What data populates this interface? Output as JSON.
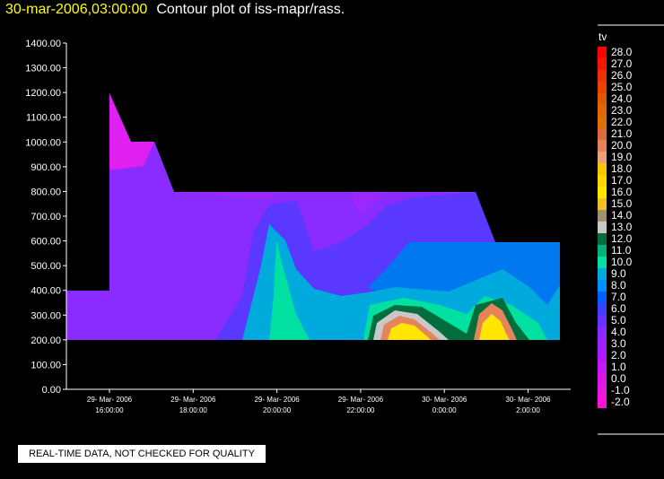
{
  "header": {
    "timestamp": "30-mar-2006,03:00:00",
    "title": "Contour plot of iss-mapr/rass."
  },
  "notice": "REAL-TIME DATA, NOT CHECKED FOR QUALITY",
  "colors": {
    "background": "#000000",
    "timestamp_text": "#ffff00",
    "axis": "#ffffff"
  },
  "chart_data": {
    "type": "heatmap",
    "title": "Contour plot of iss-mapr/rass.",
    "xlabel": "",
    "ylabel": "",
    "ylim": [
      0,
      1400
    ],
    "yticks": [
      "1400.00",
      "1300.00",
      "1200.00",
      "1100.00",
      "1000.00",
      "900.00",
      "800.00",
      "700.00",
      "600.00",
      "500.00",
      "400.00",
      "300.00",
      "200.00",
      "100.00",
      "0.00"
    ],
    "xticks": [
      {
        "date": "29- Mar- 2006",
        "time": "16:00:00"
      },
      {
        "date": "29- Mar- 2006",
        "time": "18:00:00"
      },
      {
        "date": "29- Mar- 2006",
        "time": "20:00:00"
      },
      {
        "date": "29- Mar- 2006",
        "time": "22:00:00"
      },
      {
        "date": "30- Mar- 2006",
        "time": "0:00:00"
      },
      {
        "date": "30- Mar- 2006",
        "time": "2:00:00"
      }
    ],
    "colorbar": {
      "label": "tv",
      "levels": [
        "28.0",
        "27.0",
        "26.0",
        "25.0",
        "24.0",
        "23.0",
        "22.0",
        "21.0",
        "20.0",
        "19.0",
        "18.0",
        "17.0",
        "16.0",
        "15.0",
        "14.0",
        "13.0",
        "12.0",
        "11.0",
        "10.0",
        "9.0",
        "8.0",
        "7.0",
        "6.0",
        "5.0",
        "4.0",
        "3.0",
        "2.0",
        "1.0",
        "0.0",
        "-1.0",
        "-2.0"
      ],
      "colors": [
        "#ff0000",
        "#f51500",
        "#ee3000",
        "#e84400",
        "#e25800",
        "#e06800",
        "#de7000",
        "#df6a3a",
        "#e5845a",
        "#ed9f7c",
        "#f5c600",
        "#fbd600",
        "#ffe500",
        "#f0c020",
        "#a09070",
        "#c8c8c8",
        "#006e3c",
        "#00b07a",
        "#00e0a0",
        "#00aadc",
        "#0090ff",
        "#0060ff",
        "#3a40ff",
        "#6a30ff",
        "#8a2aff",
        "#a020ff",
        "#b018ff",
        "#c818f4",
        "#d818e8",
        "#e818de",
        "#ff10d6"
      ]
    }
  }
}
